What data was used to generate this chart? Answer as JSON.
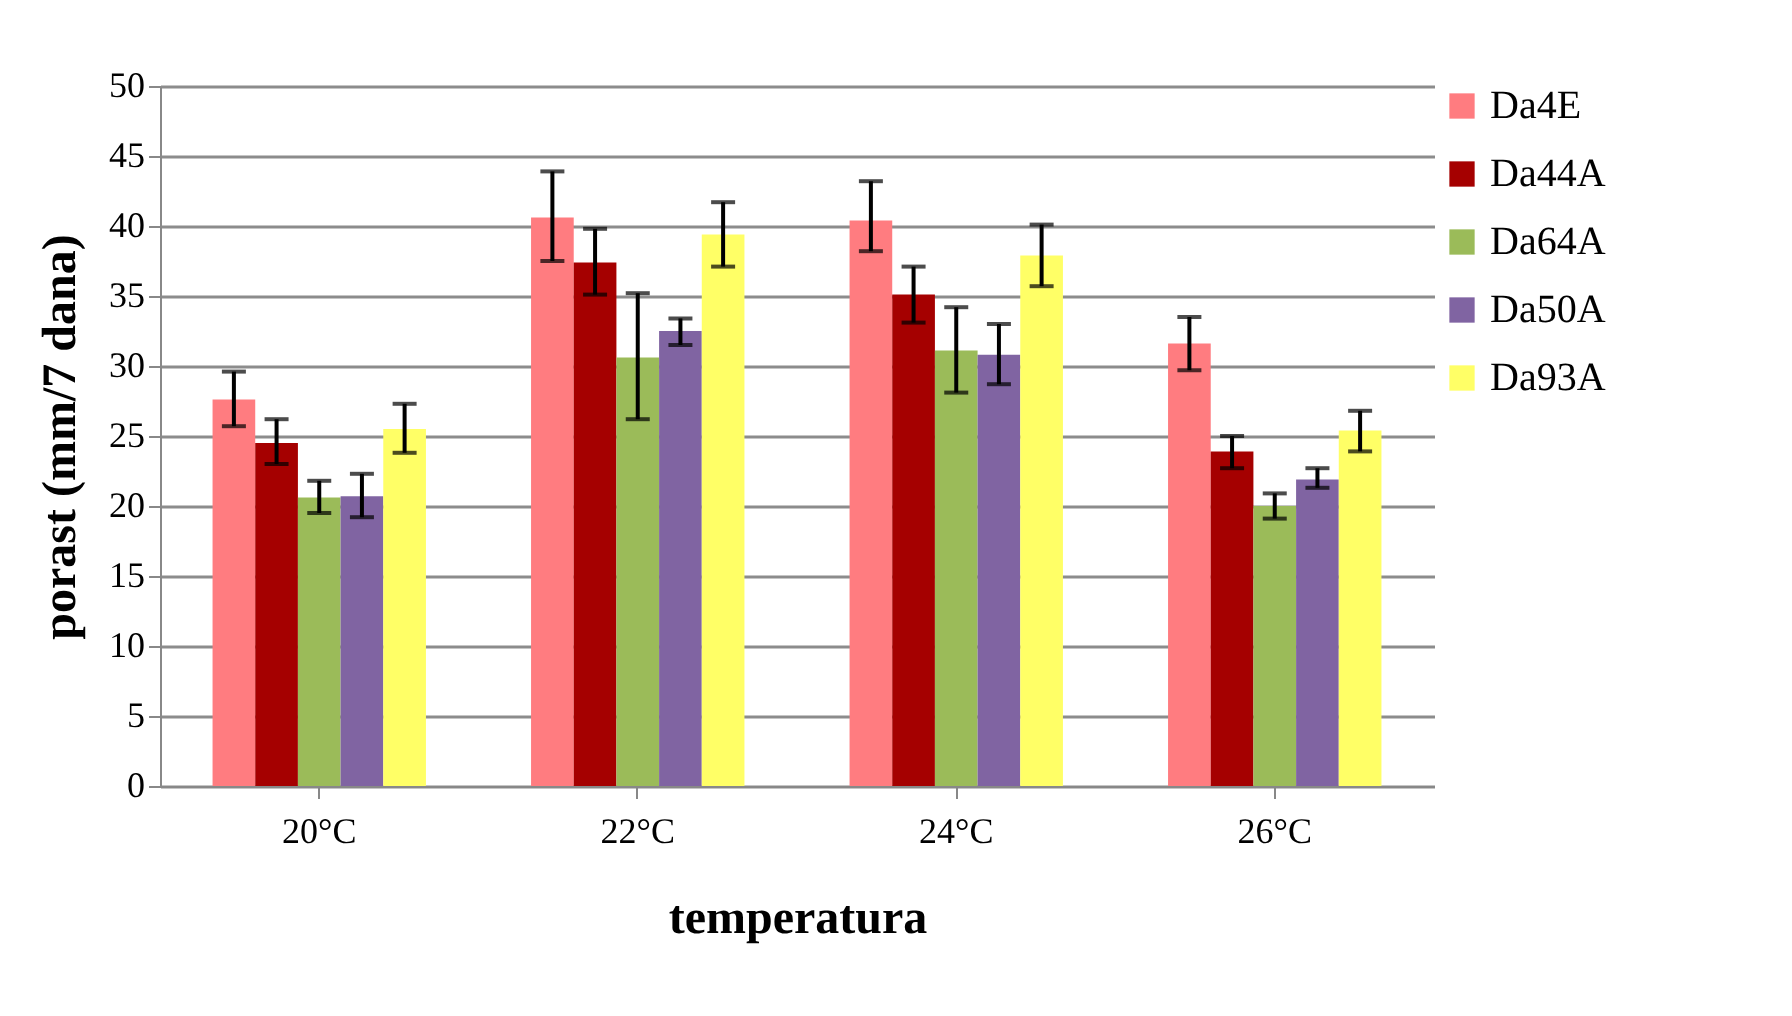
{
  "chart_data": {
    "type": "bar",
    "xlabel": "temperatura",
    "ylabel": "porast (mm/7 dana)",
    "categories": [
      "20°C",
      "22°C",
      "24°C",
      "26°C"
    ],
    "series": [
      {
        "name": "Da4E",
        "color": "#ff7c80",
        "values": [
          27.6,
          40.6,
          40.4,
          31.6
        ],
        "errors": [
          [
            25.7,
            29.6
          ],
          [
            37.5,
            43.9
          ],
          [
            38.2,
            43.2
          ],
          [
            29.7,
            33.5
          ]
        ]
      },
      {
        "name": "Da44A",
        "color": "#a50000",
        "values": [
          24.5,
          37.4,
          35.1,
          23.9
        ],
        "errors": [
          [
            23.0,
            26.2
          ],
          [
            35.1,
            39.8
          ],
          [
            33.1,
            37.1
          ],
          [
            22.7,
            25.0
          ]
        ]
      },
      {
        "name": "Da64A",
        "color": "#9bbb59",
        "values": [
          20.6,
          30.6,
          31.1,
          20.0
        ],
        "errors": [
          [
            19.5,
            21.8
          ],
          [
            26.2,
            35.2
          ],
          [
            28.1,
            34.2
          ],
          [
            19.1,
            20.9
          ]
        ]
      },
      {
        "name": "Da50A",
        "color": "#8064a2",
        "values": [
          20.7,
          32.5,
          30.8,
          21.9
        ],
        "errors": [
          [
            19.2,
            22.3
          ],
          [
            31.5,
            33.4
          ],
          [
            28.7,
            33.0
          ],
          [
            21.3,
            22.7
          ]
        ]
      },
      {
        "name": "Da93A",
        "color": "#ffff66",
        "values": [
          25.5,
          39.4,
          37.9,
          25.4
        ],
        "errors": [
          [
            23.8,
            27.3
          ],
          [
            37.1,
            41.7
          ],
          [
            35.7,
            40.1
          ],
          [
            23.9,
            26.8
          ]
        ]
      }
    ],
    "ylim": [
      0,
      50
    ],
    "yticks": [
      0,
      5,
      10,
      15,
      20,
      25,
      30,
      35,
      40,
      45,
      50
    ],
    "grid": "y",
    "legend": "right"
  }
}
